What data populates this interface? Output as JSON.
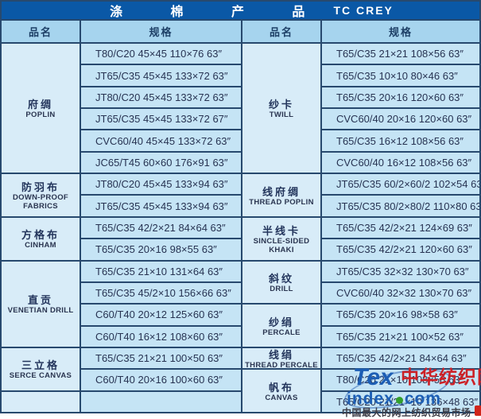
{
  "title": {
    "zh": "涤 棉 产 品",
    "en": "TC CREY"
  },
  "columns": {
    "c1": "品名",
    "c2": "规格",
    "c3": "品名",
    "c4": "规格"
  },
  "left_sections": [
    {
      "name_zh": "府绸",
      "name_en": "POPLIN",
      "rows": [
        "T80/C20 45×45  110×76  63″",
        "JT65/C35 45×45  133×72  63″",
        "JT80/C20 45×45  133×72  63″",
        "JT65/C35 45×45  133×72  67″",
        "CVC60/40 45×45  133×72  63″",
        "JC65/T45 60×60  176×91  63″"
      ]
    },
    {
      "name_zh": "防羽布",
      "name_en": "DOWN-PROOF FABRICS",
      "rows": [
        "JT80/C20 45×45  133×94  63″",
        "JT65/C35 45×45  133×94  63″"
      ]
    },
    {
      "name_zh": "方格布",
      "name_en": "CINHAM",
      "rows": [
        "T65/C35 42/2×21  84×64  63″",
        "T65/C35 20×16  98×55  63″"
      ]
    },
    {
      "name_zh": "直贡",
      "name_en": "VENETIAN DRILL",
      "rows": [
        "T65/C35 21×10  131×64  63″",
        "T65/C35 45/2×10  156×66  63″",
        "C60/T40 20×12  125×60  63″",
        "C60/T40 16×12  108×60  63″"
      ]
    },
    {
      "name_zh": "三立格",
      "name_en": "SERCE CANVAS",
      "rows": [
        "T65/C35 21×21  100×50  63″",
        "C60/T40 20×16  100×60  63″"
      ]
    },
    {
      "name_zh": "",
      "name_en": "",
      "rows": [
        ""
      ]
    }
  ],
  "right_sections": [
    {
      "name_zh": "纱卡",
      "name_en": "TWILL",
      "rows": [
        "T65/C35 21×21  108×56  63″",
        "T65/C35 10×10  80×46  63″",
        "T65/C35 20×16  120×60  63″",
        "CVC60/40 20×16  120×60  63″",
        "T65/C35 16×12  108×56  63″",
        "CVC60/40 16×12  108×56  63″"
      ]
    },
    {
      "name_zh": "线府绸",
      "name_en": "THREAD POPLIN",
      "rows": [
        "JT65/C35 60/2×60/2  102×54  63″",
        "JT65/C35 80/2×80/2  110×80  63″"
      ]
    },
    {
      "name_zh": "半线卡",
      "name_en": "SINCLE-SIDED KHAKI",
      "rows": [
        "T65/C35 42/2×21  124×69  63″",
        "T65/C35 42/2×21  120×60  63″"
      ]
    },
    {
      "name_zh": "斜纹",
      "name_en": "DRILL",
      "rows": [
        "JT65/C35 32×32  130×70  63″",
        "CVC60/40 32×32  130×70  63″"
      ]
    },
    {
      "name_zh": "纱绢",
      "name_en": "PERCALE",
      "rows": [
        "T65/C35 20×16  98×58  63″",
        "T65/C35 21×21  100×52  63″"
      ]
    },
    {
      "name_zh": "线绢",
      "name_en": "THREAD PERCALE",
      "rows": [
        "T65/C35 42/2×21  84×64  63″"
      ]
    },
    {
      "name_zh": "帆布",
      "name_en": "CANVAS",
      "rows": [
        "T80/C20 21×10  108×58  63″",
        "T65/C20 21/21×10  136×48  63″"
      ]
    }
  ],
  "watermark": {
    "logo_tex": "Tex",
    "logo_index": "index",
    "logo_com": "com",
    "brand": "中华纺织网",
    "tagline": "中国最大的网上纺织贸易市场"
  },
  "colors": {
    "title_bar": "#0a58a6",
    "title_text": "#ffffff",
    "header_bg": "#a6d4ee",
    "name_cell_bg": "#d8ecf8",
    "spec_cell_bg": "#c5e4f5",
    "border": "#27496e",
    "text": "#273352",
    "watermark_blue": "#1d5fb5",
    "watermark_green": "#33a02c",
    "watermark_red": "#cc2127",
    "tagline": "#3c3c46"
  }
}
